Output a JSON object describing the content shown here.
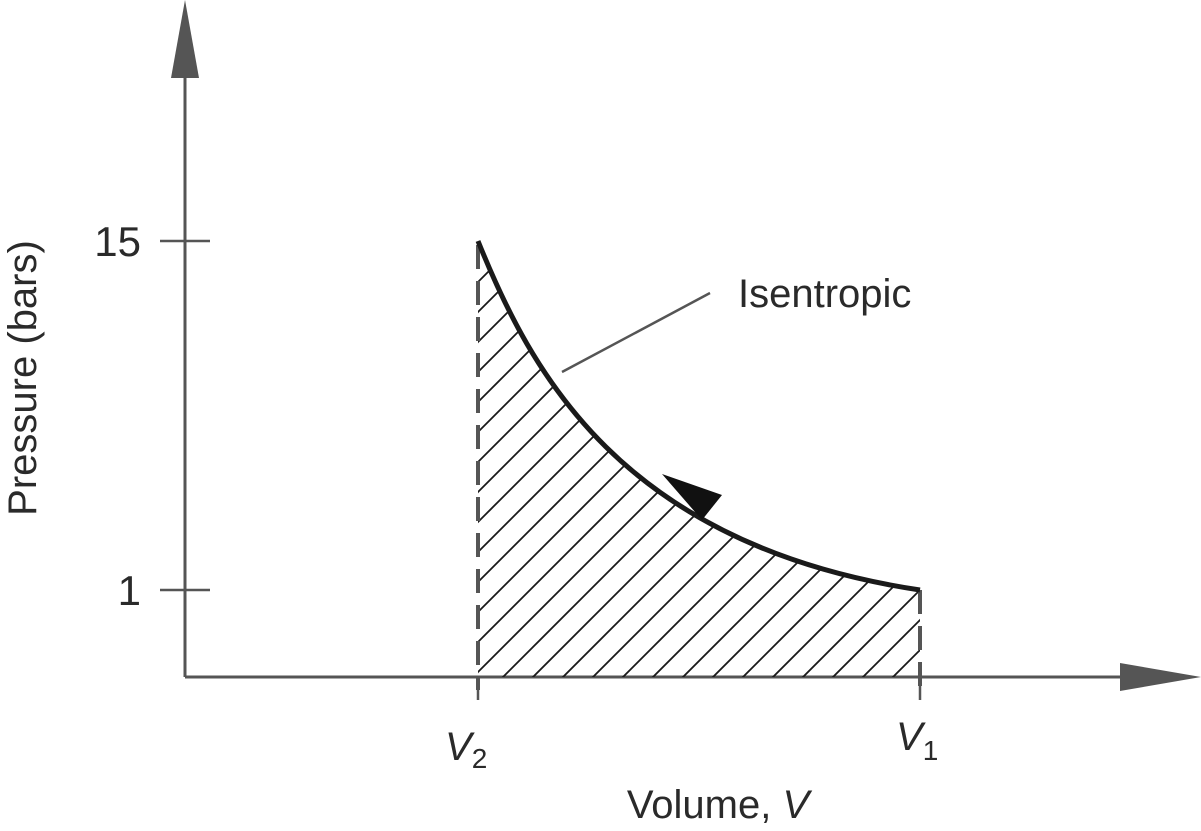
{
  "axes": {
    "y_title": "Pressure (bars)",
    "x_title_text": "Volume, ",
    "x_title_var": "V"
  },
  "y_ticks": [
    "15",
    "1"
  ],
  "x_ticks": [
    {
      "symbol": "V",
      "subscript": "2"
    },
    {
      "symbol": "V",
      "subscript": "1"
    }
  ],
  "curve": {
    "label": "Isentropic",
    "direction": "compression from V1 to V2"
  },
  "colors": {
    "axis": "#555555",
    "curve": "#1a1a1a",
    "background": "#ffffff"
  }
}
